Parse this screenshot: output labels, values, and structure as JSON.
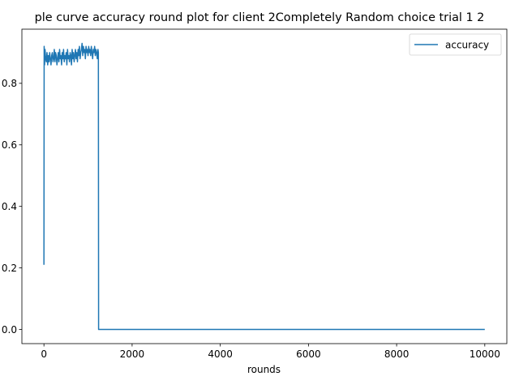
{
  "chart_data": {
    "type": "line",
    "title": "ple curve accuracy round plot for client 2Completely Random choice trial 1 2",
    "xlabel": "rounds",
    "ylabel": "",
    "xlim": [
      -500,
      10500
    ],
    "ylim": [
      -0.046,
      0.976
    ],
    "xticks": [
      0,
      2000,
      4000,
      6000,
      8000,
      10000
    ],
    "xtick_labels": [
      "0",
      "2000",
      "4000",
      "6000",
      "8000",
      "10000"
    ],
    "yticks": [
      0.0,
      0.2,
      0.4,
      0.6,
      0.8
    ],
    "ytick_labels": [
      "0.0",
      "0.2",
      "0.4",
      "0.6",
      "0.8"
    ],
    "grid": false,
    "legend_position": "upper right",
    "series": [
      {
        "name": "accuracy",
        "color": "#1f77b4",
        "x": [
          0,
          5,
          15,
          25,
          40,
          55,
          70,
          85,
          100,
          115,
          130,
          145,
          160,
          175,
          190,
          205,
          220,
          235,
          250,
          265,
          280,
          295,
          310,
          325,
          340,
          355,
          370,
          385,
          400,
          415,
          430,
          445,
          460,
          475,
          490,
          505,
          520,
          535,
          550,
          565,
          580,
          595,
          610,
          625,
          640,
          655,
          670,
          685,
          700,
          715,
          730,
          745,
          760,
          775,
          790,
          805,
          820,
          835,
          850,
          865,
          880,
          895,
          910,
          925,
          940,
          955,
          970,
          985,
          1000,
          1015,
          1030,
          1045,
          1060,
          1075,
          1090,
          1105,
          1120,
          1135,
          1150,
          1165,
          1180,
          1195,
          1210,
          1225,
          1235,
          1240,
          1250,
          2000,
          4000,
          6000,
          8000,
          10000
        ],
        "y": [
          0.21,
          0.92,
          0.86,
          0.91,
          0.88,
          0.87,
          0.9,
          0.86,
          0.89,
          0.87,
          0.9,
          0.88,
          0.86,
          0.89,
          0.9,
          0.87,
          0.88,
          0.91,
          0.87,
          0.9,
          0.89,
          0.86,
          0.88,
          0.9,
          0.87,
          0.91,
          0.88,
          0.89,
          0.86,
          0.9,
          0.88,
          0.91,
          0.87,
          0.89,
          0.88,
          0.9,
          0.86,
          0.91,
          0.88,
          0.89,
          0.87,
          0.9,
          0.89,
          0.86,
          0.91,
          0.88,
          0.9,
          0.87,
          0.89,
          0.91,
          0.88,
          0.9,
          0.87,
          0.91,
          0.89,
          0.92,
          0.88,
          0.9,
          0.91,
          0.93,
          0.89,
          0.92,
          0.9,
          0.91,
          0.88,
          0.92,
          0.9,
          0.91,
          0.89,
          0.92,
          0.9,
          0.91,
          0.89,
          0.92,
          0.9,
          0.88,
          0.91,
          0.9,
          0.92,
          0.89,
          0.91,
          0.9,
          0.88,
          0.91,
          0.9,
          0.0,
          0.0,
          0.0,
          0.0,
          0.0,
          0.0,
          0.0
        ]
      }
    ]
  }
}
